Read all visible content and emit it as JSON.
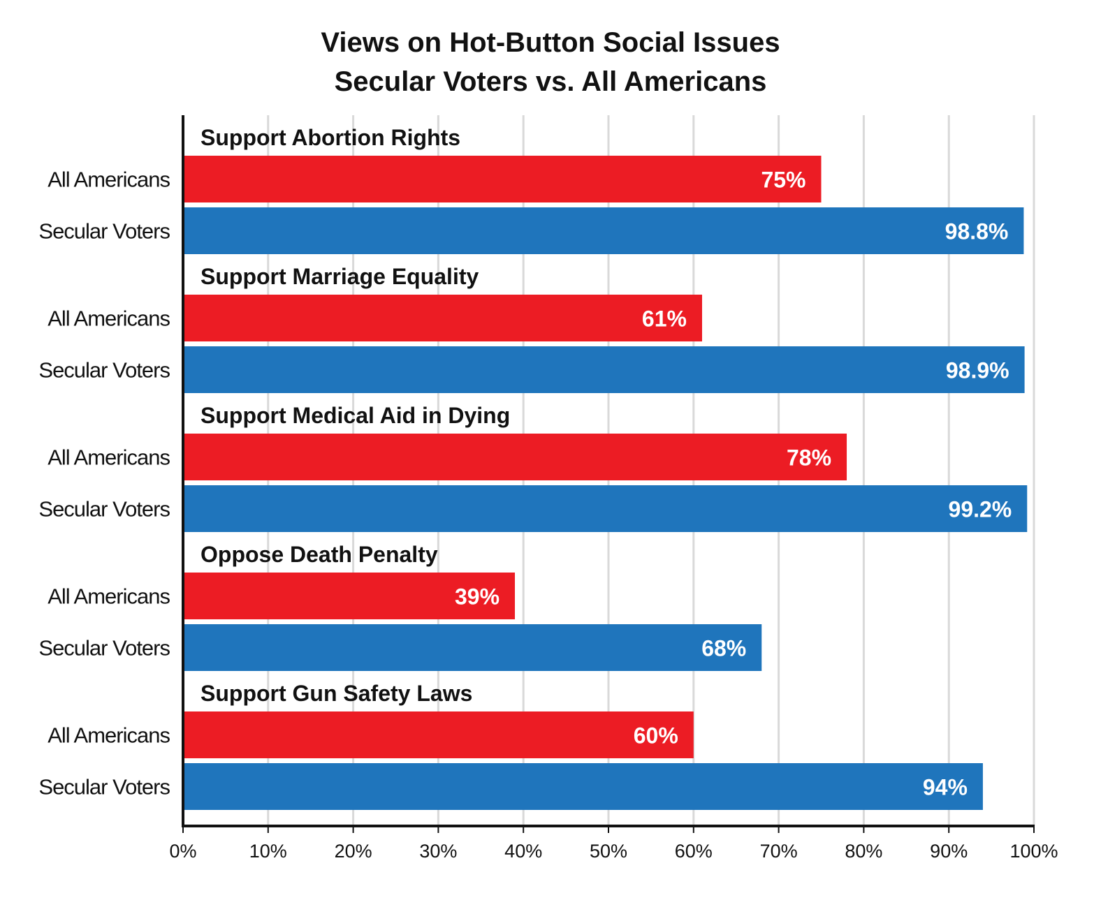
{
  "chart_data": {
    "type": "bar",
    "orientation": "horizontal",
    "title": [
      "Views on Hot-Button Social Issues",
      "Secular Voters vs. All Americans"
    ],
    "xlim": [
      0,
      100
    ],
    "x_ticks": [
      "0%",
      "10%",
      "20%",
      "30%",
      "40%",
      "50%",
      "60%",
      "70%",
      "80%",
      "90%",
      "100%"
    ],
    "grid": "vertical",
    "groups": [
      {
        "title": "Support Abortion Rights",
        "bars": [
          {
            "label": "All Americans",
            "value": 75,
            "value_label": "75%"
          },
          {
            "label": "Secular Voters",
            "value": 98.8,
            "value_label": "98.8%"
          }
        ]
      },
      {
        "title": "Support Marriage Equality",
        "bars": [
          {
            "label": "All Americans",
            "value": 61,
            "value_label": "61%"
          },
          {
            "label": "Secular Voters",
            "value": 98.9,
            "value_label": "98.9%"
          }
        ]
      },
      {
        "title": "Support Medical Aid in Dying",
        "bars": [
          {
            "label": "All Americans",
            "value": 78,
            "value_label": "78%"
          },
          {
            "label": "Secular Voters",
            "value": 99.2,
            "value_label": "99.2%"
          }
        ]
      },
      {
        "title": "Oppose Death Penalty",
        "bars": [
          {
            "label": "All Americans",
            "value": 39,
            "value_label": "39%"
          },
          {
            "label": "Secular Voters",
            "value": 68,
            "value_label": "68%"
          }
        ]
      },
      {
        "title": "Support Gun Safety Laws",
        "bars": [
          {
            "label": "All Americans",
            "value": 60,
            "value_label": "60%"
          },
          {
            "label": "Secular Voters",
            "value": 94,
            "value_label": "94%"
          }
        ]
      }
    ],
    "colors": {
      "All Americans": "#ec1c24",
      "Secular Voters": "#1f75bc",
      "grid": "#d9d9d9",
      "axis": "#111111"
    }
  }
}
